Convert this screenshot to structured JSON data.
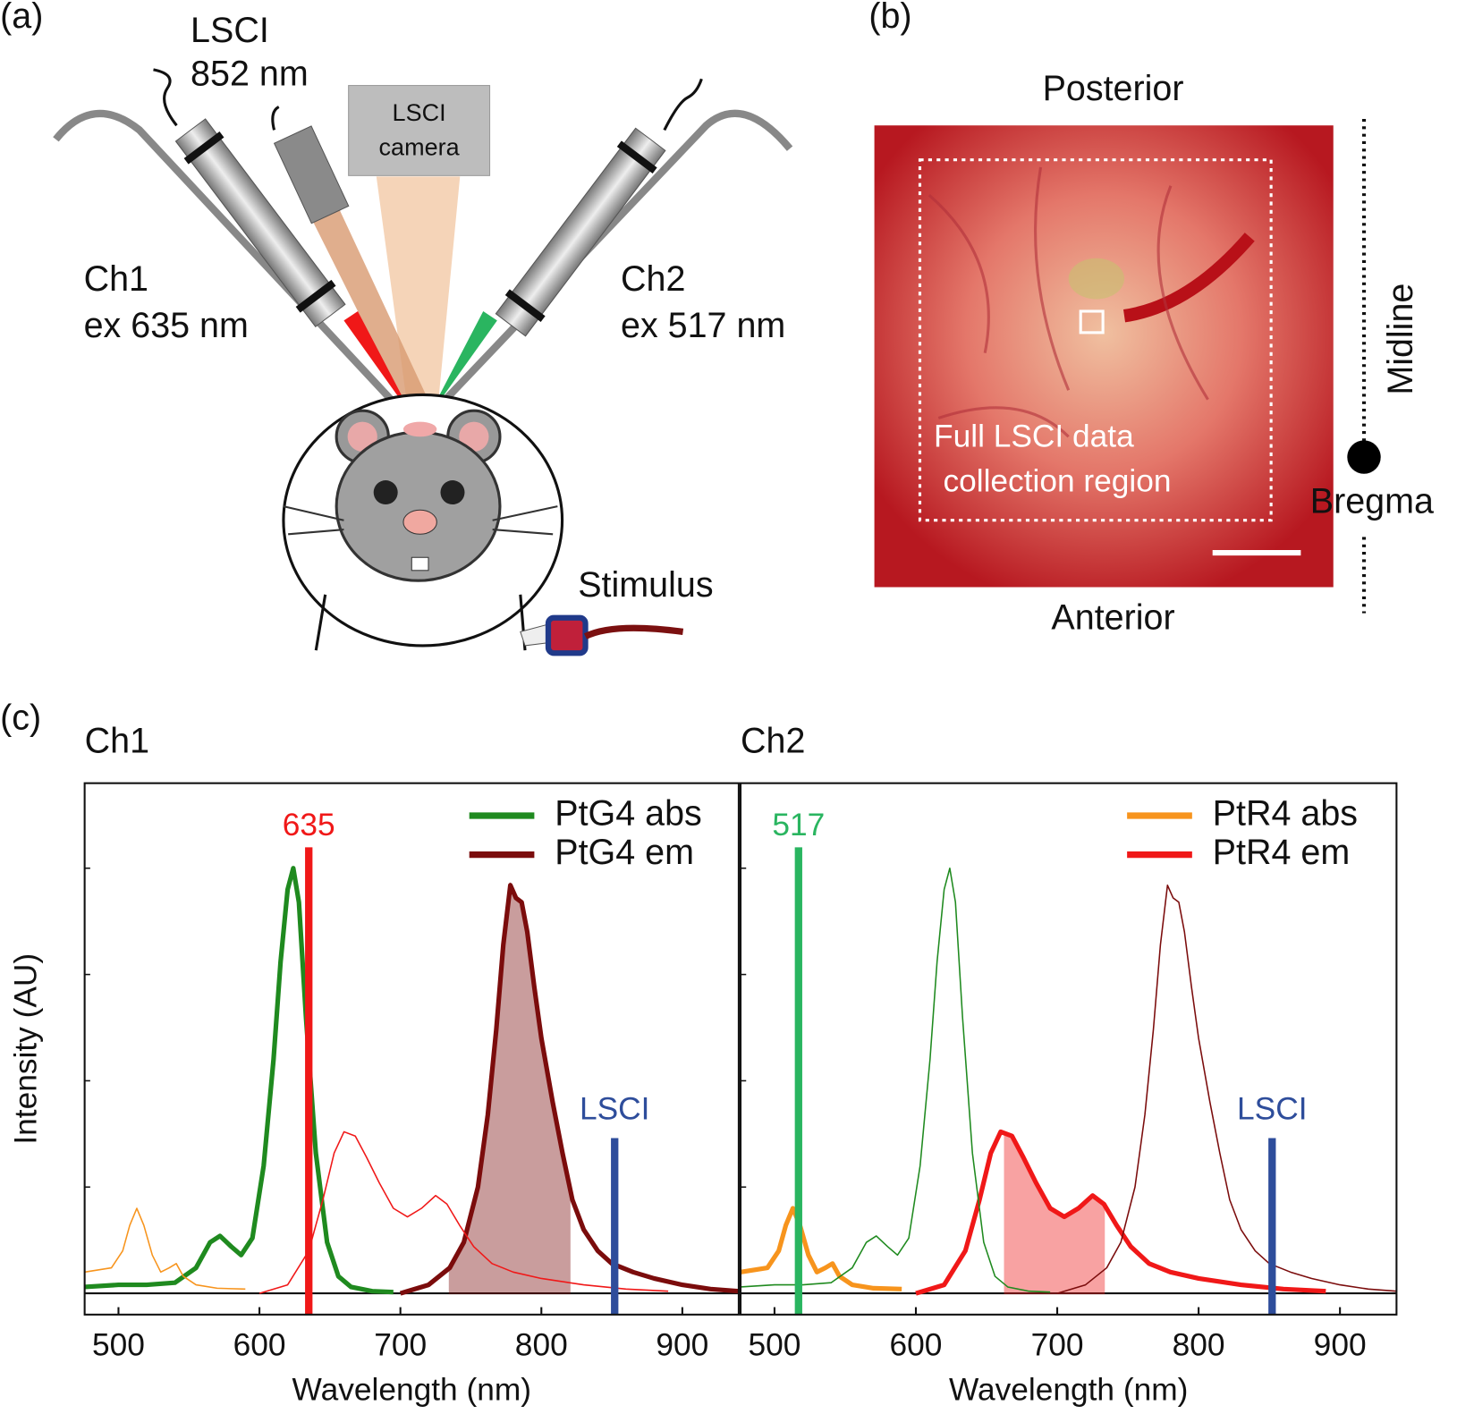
{
  "panel_a": {
    "label": "(a)",
    "laser_lsci": [
      "LSCI",
      "852 nm"
    ],
    "camera": [
      "LSCI",
      "camera"
    ],
    "ch1": [
      "Ch1",
      "ex 635 nm"
    ],
    "ch2": [
      "Ch2",
      "ex 517 nm"
    ],
    "stimulus": "Stimulus"
  },
  "panel_b": {
    "label": "(b)",
    "top": "Posterior",
    "bottom": "Anterior",
    "midline": "Midline",
    "bregma": "Bregma",
    "region": [
      "Full LSCI data",
      "collection region"
    ]
  },
  "panel_c": {
    "label": "(c)"
  },
  "chart_data": [
    {
      "type": "line",
      "title": "Ch1",
      "xlabel": "Wavelength (nm)",
      "ylabel": "Intensity (AU)",
      "xlim": [
        476,
        940
      ],
      "xticks": [
        500,
        600,
        700,
        800,
        900
      ],
      "ylim": [
        -0.05,
        1.2
      ],
      "yticks": [
        0,
        0.25,
        0.5,
        0.75,
        1
      ],
      "legend": "upper right",
      "series": [
        {
          "name": "PtG4 abs",
          "color": "#1f8a1f",
          "width": 5,
          "x": [
            476,
            500,
            520,
            540,
            555,
            565,
            572,
            580,
            587,
            595,
            603,
            610,
            615,
            620,
            624,
            628,
            633,
            640,
            648,
            656,
            665,
            680,
            695
          ],
          "values": [
            0.015,
            0.02,
            0.02,
            0.025,
            0.06,
            0.12,
            0.135,
            0.11,
            0.09,
            0.13,
            0.3,
            0.55,
            0.78,
            0.95,
            1.0,
            0.92,
            0.65,
            0.33,
            0.12,
            0.04,
            0.015,
            0.005,
            0.003
          ]
        },
        {
          "name": "PtG4 em",
          "color": "#7b0c0c",
          "width": 5,
          "shaded_range": [
            735,
            820
          ],
          "x": [
            700,
            720,
            735,
            745,
            755,
            762,
            768,
            773,
            778,
            782,
            786,
            790,
            795,
            800,
            808,
            815,
            822,
            830,
            840,
            850,
            865,
            880,
            900,
            920,
            940
          ],
          "values": [
            0.0,
            0.02,
            0.06,
            0.12,
            0.25,
            0.42,
            0.62,
            0.82,
            0.96,
            0.93,
            0.92,
            0.85,
            0.72,
            0.6,
            0.45,
            0.33,
            0.22,
            0.15,
            0.1,
            0.07,
            0.05,
            0.035,
            0.02,
            0.01,
            0.005
          ]
        },
        {
          "color": "#f7941d",
          "width": 1.5,
          "x": [
            476,
            495,
            503,
            508,
            513,
            518,
            524,
            530,
            536,
            541,
            546,
            555,
            570,
            590
          ],
          "values": [
            0.05,
            0.06,
            0.1,
            0.16,
            0.2,
            0.16,
            0.09,
            0.05,
            0.06,
            0.07,
            0.04,
            0.02,
            0.012,
            0.01
          ]
        },
        {
          "color": "#f01818",
          "width": 1.5,
          "x": [
            600,
            620,
            635,
            645,
            653,
            660,
            668,
            676,
            685,
            695,
            705,
            715,
            725,
            733,
            742,
            752,
            765,
            780,
            800,
            830,
            860,
            890
          ],
          "values": [
            0.0,
            0.02,
            0.1,
            0.22,
            0.33,
            0.38,
            0.37,
            0.32,
            0.26,
            0.2,
            0.18,
            0.2,
            0.23,
            0.21,
            0.16,
            0.11,
            0.07,
            0.05,
            0.035,
            0.02,
            0.01,
            0.005
          ]
        }
      ],
      "markers": [
        {
          "x": 635,
          "label": "635",
          "color": "#f01818"
        },
        {
          "x": 852,
          "label": "LSCI",
          "color": "#2e4d9b"
        }
      ]
    },
    {
      "type": "line",
      "title": "Ch2",
      "xlabel": "Wavelength (nm)",
      "xlim": [
        476,
        940
      ],
      "xticks": [
        500,
        600,
        700,
        800,
        900
      ],
      "ylim": [
        -0.05,
        1.2
      ],
      "yticks": [
        0,
        0.25,
        0.5,
        0.75,
        1
      ],
      "legend": "upper right",
      "series": [
        {
          "name": "PtR4 abs",
          "color": "#f7941d",
          "width": 5,
          "x": [
            476,
            495,
            503,
            508,
            513,
            518,
            524,
            530,
            536,
            541,
            546,
            555,
            570,
            590
          ],
          "values": [
            0.05,
            0.06,
            0.1,
            0.16,
            0.2,
            0.16,
            0.09,
            0.05,
            0.06,
            0.07,
            0.04,
            0.02,
            0.012,
            0.01
          ]
        },
        {
          "name": "PtR4 em",
          "color": "#f01818",
          "width": 5,
          "shaded_range": [
            663,
            733
          ],
          "x": [
            600,
            620,
            635,
            645,
            653,
            660,
            668,
            676,
            685,
            695,
            705,
            715,
            725,
            733,
            742,
            752,
            765,
            780,
            800,
            830,
            860,
            890
          ],
          "values": [
            0.0,
            0.02,
            0.1,
            0.22,
            0.33,
            0.38,
            0.37,
            0.32,
            0.26,
            0.2,
            0.18,
            0.2,
            0.23,
            0.21,
            0.16,
            0.11,
            0.07,
            0.05,
            0.035,
            0.02,
            0.01,
            0.005
          ]
        },
        {
          "color": "#1f8a1f",
          "width": 1.5,
          "x": [
            476,
            500,
            520,
            540,
            555,
            565,
            572,
            580,
            587,
            595,
            603,
            610,
            615,
            620,
            624,
            628,
            633,
            640,
            648,
            656,
            665,
            680,
            695
          ],
          "values": [
            0.015,
            0.02,
            0.02,
            0.025,
            0.06,
            0.12,
            0.135,
            0.11,
            0.09,
            0.13,
            0.3,
            0.55,
            0.78,
            0.95,
            1.0,
            0.92,
            0.65,
            0.33,
            0.12,
            0.04,
            0.015,
            0.005,
            0.003
          ]
        },
        {
          "color": "#7b0c0c",
          "width": 1.5,
          "x": [
            700,
            720,
            735,
            745,
            755,
            762,
            768,
            773,
            778,
            782,
            786,
            790,
            795,
            800,
            808,
            815,
            822,
            830,
            840,
            850,
            865,
            880,
            900,
            920,
            940
          ],
          "values": [
            0.0,
            0.02,
            0.06,
            0.12,
            0.25,
            0.42,
            0.62,
            0.82,
            0.96,
            0.93,
            0.92,
            0.85,
            0.72,
            0.6,
            0.45,
            0.33,
            0.22,
            0.15,
            0.1,
            0.07,
            0.05,
            0.035,
            0.02,
            0.01,
            0.005
          ]
        }
      ],
      "markers": [
        {
          "x": 517,
          "label": "517",
          "color": "#2ab560"
        },
        {
          "x": 852,
          "label": "LSCI",
          "color": "#2e4d9b"
        }
      ]
    }
  ]
}
